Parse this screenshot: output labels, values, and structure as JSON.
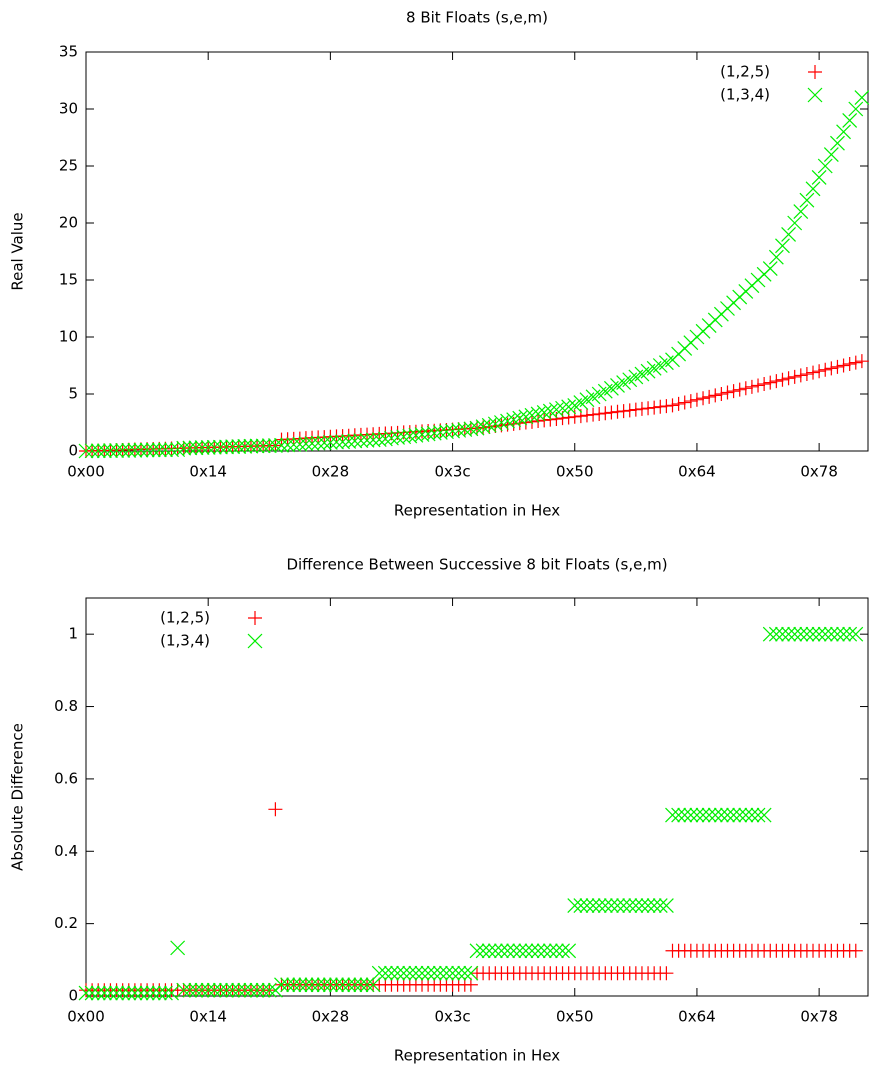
{
  "chart_data": [
    {
      "type": "scatter",
      "title": "8 Bit Floats (s,e,m)",
      "xlabel": "Representation in Hex",
      "ylabel": "Real Value",
      "legend": "top right",
      "xlim": [
        0,
        128
      ],
      "ylim": [
        0,
        35
      ],
      "xticks": [
        {
          "value": 0,
          "label": "0x00"
        },
        {
          "value": 20,
          "label": "0x14"
        },
        {
          "value": 40,
          "label": "0x28"
        },
        {
          "value": 60,
          "label": "0x3c"
        },
        {
          "value": 80,
          "label": "0x50"
        },
        {
          "value": 100,
          "label": "0x64"
        },
        {
          "value": 120,
          "label": "0x78"
        }
      ],
      "yticks": [
        0,
        5,
        10,
        15,
        20,
        25,
        30,
        35
      ],
      "x": [
        0,
        1,
        2,
        3,
        4,
        5,
        6,
        7,
        8,
        9,
        10,
        11,
        12,
        13,
        14,
        15,
        16,
        17,
        18,
        19,
        20,
        21,
        22,
        23,
        24,
        25,
        26,
        27,
        28,
        29,
        30,
        31,
        32,
        33,
        34,
        35,
        36,
        37,
        38,
        39,
        40,
        41,
        42,
        43,
        44,
        45,
        46,
        47,
        48,
        49,
        50,
        51,
        52,
        53,
        54,
        55,
        56,
        57,
        58,
        59,
        60,
        61,
        62,
        63,
        64,
        65,
        66,
        67,
        68,
        69,
        70,
        71,
        72,
        73,
        74,
        75,
        76,
        77,
        78,
        79,
        80,
        81,
        82,
        83,
        84,
        85,
        86,
        87,
        88,
        89,
        90,
        91,
        92,
        93,
        94,
        95,
        96,
        97,
        98,
        99,
        100,
        101,
        102,
        103,
        104,
        105,
        106,
        107,
        108,
        109,
        110,
        111,
        112,
        113,
        114,
        115,
        116,
        117,
        118,
        119,
        120,
        121,
        122,
        123,
        124,
        125,
        126,
        127
      ],
      "series": [
        {
          "name": "(1,2,5)",
          "color": "#ff0000",
          "marker": "plus",
          "values": [
            0,
            0.02,
            0.03,
            0.05,
            0.06,
            0.08,
            0.09,
            0.11,
            0.13,
            0.14,
            0.16,
            0.17,
            0.19,
            0.2,
            0.22,
            0.23,
            0.25,
            0.27,
            0.28,
            0.3,
            0.31,
            0.33,
            0.34,
            0.36,
            0.38,
            0.39,
            0.41,
            0.42,
            0.44,
            0.45,
            0.47,
            0.48,
            1,
            1.03,
            1.06,
            1.09,
            1.13,
            1.16,
            1.19,
            1.22,
            1.25,
            1.28,
            1.31,
            1.34,
            1.38,
            1.41,
            1.44,
            1.47,
            1.5,
            1.53,
            1.56,
            1.59,
            1.63,
            1.66,
            1.69,
            1.72,
            1.75,
            1.78,
            1.81,
            1.84,
            1.88,
            1.91,
            1.94,
            1.97,
            2,
            2.06,
            2.13,
            2.19,
            2.25,
            2.31,
            2.38,
            2.44,
            2.5,
            2.56,
            2.63,
            2.69,
            2.75,
            2.81,
            2.88,
            2.94,
            3,
            3.06,
            3.13,
            3.19,
            3.25,
            3.31,
            3.38,
            3.44,
            3.5,
            3.56,
            3.63,
            3.69,
            3.75,
            3.81,
            3.88,
            3.94,
            4,
            4.13,
            4.25,
            4.38,
            4.5,
            4.63,
            4.75,
            4.88,
            5,
            5.13,
            5.25,
            5.38,
            5.5,
            5.63,
            5.75,
            5.88,
            6,
            6.13,
            6.25,
            6.38,
            6.5,
            6.63,
            6.75,
            6.88,
            7,
            7.13,
            7.25,
            7.38,
            7.5,
            7.63,
            7.75,
            7.88
          ]
        },
        {
          "name": "(1,3,4)",
          "color": "#00ee00",
          "marker": "cross",
          "values": [
            0,
            0.01,
            0.02,
            0.02,
            0.03,
            0.04,
            0.05,
            0.05,
            0.06,
            0.07,
            0.08,
            0.09,
            0.09,
            0.1,
            0.11,
            0.12,
            0.25,
            0.27,
            0.28,
            0.3,
            0.31,
            0.33,
            0.34,
            0.36,
            0.38,
            0.39,
            0.41,
            0.42,
            0.44,
            0.45,
            0.47,
            0.48,
            0.5,
            0.53,
            0.56,
            0.59,
            0.63,
            0.66,
            0.69,
            0.72,
            0.75,
            0.78,
            0.81,
            0.84,
            0.88,
            0.91,
            0.94,
            0.97,
            1,
            1.06,
            1.13,
            1.19,
            1.25,
            1.31,
            1.38,
            1.44,
            1.5,
            1.56,
            1.63,
            1.69,
            1.75,
            1.81,
            1.88,
            1.94,
            2,
            2.13,
            2.25,
            2.38,
            2.5,
            2.63,
            2.75,
            2.88,
            3,
            3.13,
            3.25,
            3.38,
            3.5,
            3.63,
            3.75,
            3.88,
            4,
            4.25,
            4.5,
            4.75,
            5,
            5.25,
            5.5,
            5.75,
            6,
            6.25,
            6.5,
            6.75,
            7,
            7.25,
            7.5,
            7.75,
            8,
            8.5,
            9,
            9.5,
            10,
            10.5,
            11,
            11.5,
            12,
            12.5,
            13,
            13.5,
            14,
            14.5,
            15,
            15.5,
            16,
            17,
            18,
            19,
            20,
            21,
            22,
            23,
            24,
            25,
            26,
            27,
            28,
            29,
            30,
            31
          ]
        }
      ]
    },
    {
      "type": "scatter",
      "title": "Difference Between Successive 8 bit Floats (s,e,m)",
      "xlabel": "Representation in Hex",
      "ylabel": "Absolute Difference",
      "legend": "top left",
      "xlim": [
        0,
        128
      ],
      "ylim": [
        0,
        1.1
      ],
      "xticks": [
        {
          "value": 0,
          "label": "0x00"
        },
        {
          "value": 20,
          "label": "0x14"
        },
        {
          "value": 40,
          "label": "0x28"
        },
        {
          "value": 60,
          "label": "0x3c"
        },
        {
          "value": 80,
          "label": "0x50"
        },
        {
          "value": 100,
          "label": "0x64"
        },
        {
          "value": 120,
          "label": "0x78"
        }
      ],
      "yticks": [
        0,
        0.2,
        0.4,
        0.6,
        0.8,
        1
      ],
      "x": [
        0,
        1,
        2,
        3,
        4,
        5,
        6,
        7,
        8,
        9,
        10,
        11,
        12,
        13,
        14,
        15,
        16,
        17,
        18,
        19,
        20,
        21,
        22,
        23,
        24,
        25,
        26,
        27,
        28,
        29,
        30,
        31,
        32,
        33,
        34,
        35,
        36,
        37,
        38,
        39,
        40,
        41,
        42,
        43,
        44,
        45,
        46,
        47,
        48,
        49,
        50,
        51,
        52,
        53,
        54,
        55,
        56,
        57,
        58,
        59,
        60,
        61,
        62,
        63,
        64,
        65,
        66,
        67,
        68,
        69,
        70,
        71,
        72,
        73,
        74,
        75,
        76,
        77,
        78,
        79,
        80,
        81,
        82,
        83,
        84,
        85,
        86,
        87,
        88,
        89,
        90,
        91,
        92,
        93,
        94,
        95,
        96,
        97,
        98,
        99,
        100,
        101,
        102,
        103,
        104,
        105,
        106,
        107,
        108,
        109,
        110,
        111,
        112,
        113,
        114,
        115,
        116,
        117,
        118,
        119,
        120,
        121,
        122,
        123,
        124,
        125,
        126
      ],
      "series": [
        {
          "name": "(1,2,5)",
          "color": "#ff0000",
          "marker": "plus",
          "values": [
            0.016,
            0.016,
            0.016,
            0.016,
            0.016,
            0.016,
            0.016,
            0.016,
            0.016,
            0.016,
            0.016,
            0.016,
            0.016,
            0.016,
            0.016,
            0.016,
            0.016,
            0.016,
            0.016,
            0.016,
            0.016,
            0.016,
            0.016,
            0.016,
            0.016,
            0.016,
            0.016,
            0.016,
            0.016,
            0.016,
            0.016,
            0.516,
            0.031,
            0.031,
            0.031,
            0.031,
            0.031,
            0.031,
            0.031,
            0.031,
            0.031,
            0.031,
            0.031,
            0.031,
            0.031,
            0.031,
            0.031,
            0.031,
            0.031,
            0.031,
            0.031,
            0.031,
            0.031,
            0.031,
            0.031,
            0.031,
            0.031,
            0.031,
            0.031,
            0.031,
            0.031,
            0.031,
            0.031,
            0.031,
            0.063,
            0.063,
            0.063,
            0.063,
            0.063,
            0.063,
            0.063,
            0.063,
            0.063,
            0.063,
            0.063,
            0.063,
            0.063,
            0.063,
            0.063,
            0.063,
            0.063,
            0.063,
            0.063,
            0.063,
            0.063,
            0.063,
            0.063,
            0.063,
            0.063,
            0.063,
            0.063,
            0.063,
            0.063,
            0.063,
            0.063,
            0.063,
            0.125,
            0.125,
            0.125,
            0.125,
            0.125,
            0.125,
            0.125,
            0.125,
            0.125,
            0.125,
            0.125,
            0.125,
            0.125,
            0.125,
            0.125,
            0.125,
            0.125,
            0.125,
            0.125,
            0.125,
            0.125,
            0.125,
            0.125,
            0.125,
            0.125,
            0.125,
            0.125,
            0.125,
            0.125,
            0.125,
            0.125
          ]
        },
        {
          "name": "(1,3,4)",
          "color": "#00ee00",
          "marker": "cross",
          "values": [
            0.008,
            0.008,
            0.008,
            0.008,
            0.008,
            0.008,
            0.008,
            0.008,
            0.008,
            0.008,
            0.008,
            0.008,
            0.008,
            0.008,
            0.008,
            0.133,
            0.016,
            0.016,
            0.016,
            0.016,
            0.016,
            0.016,
            0.016,
            0.016,
            0.016,
            0.016,
            0.016,
            0.016,
            0.016,
            0.016,
            0.016,
            0.016,
            0.031,
            0.031,
            0.031,
            0.031,
            0.031,
            0.031,
            0.031,
            0.031,
            0.031,
            0.031,
            0.031,
            0.031,
            0.031,
            0.031,
            0.031,
            0.031,
            0.063,
            0.063,
            0.063,
            0.063,
            0.063,
            0.063,
            0.063,
            0.063,
            0.063,
            0.063,
            0.063,
            0.063,
            0.063,
            0.063,
            0.063,
            0.063,
            0.125,
            0.125,
            0.125,
            0.125,
            0.125,
            0.125,
            0.125,
            0.125,
            0.125,
            0.125,
            0.125,
            0.125,
            0.125,
            0.125,
            0.125,
            0.125,
            0.25,
            0.25,
            0.25,
            0.25,
            0.25,
            0.25,
            0.25,
            0.25,
            0.25,
            0.25,
            0.25,
            0.25,
            0.25,
            0.25,
            0.25,
            0.25,
            0.5,
            0.5,
            0.5,
            0.5,
            0.5,
            0.5,
            0.5,
            0.5,
            0.5,
            0.5,
            0.5,
            0.5,
            0.5,
            0.5,
            0.5,
            0.5,
            1,
            1,
            1,
            1,
            1,
            1,
            1,
            1,
            1,
            1,
            1,
            1,
            1,
            1,
            1
          ]
        }
      ]
    }
  ]
}
